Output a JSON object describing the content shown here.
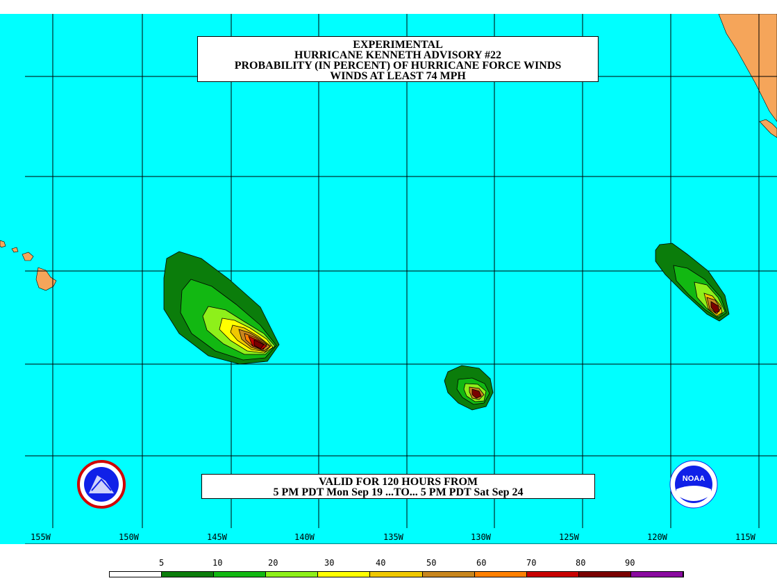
{
  "title": {
    "line1": "EXPERIMENTAL",
    "line2": "HURRICANE KENNETH ADVISORY #22",
    "line3": "PROBABILITY (IN PERCENT) OF HURRICANE FORCE WINDS",
    "line4": "WINDS AT LEAST 74 MPH"
  },
  "valid": {
    "line1": "VALID FOR 120 HOURS FROM",
    "line2": "5 PM PDT Mon Sep 19 ...TO... 5 PM PDT Sat Sep 24"
  },
  "longitudes": [
    "155W",
    "150W",
    "145W",
    "140W",
    "135W",
    "130W",
    "125W",
    "120W",
    "115W"
  ],
  "legend": {
    "labels": [
      "5",
      "10",
      "20",
      "30",
      "40",
      "50",
      "60",
      "70",
      "80",
      "90"
    ],
    "colors": [
      "#ffffff",
      "#0b7d0b",
      "#12b812",
      "#8ef01a",
      "#ffff00",
      "#f0c800",
      "#c8861e",
      "#ff8000",
      "#c80000",
      "#7a0000",
      "#8a0aa0"
    ]
  },
  "colors": {
    "ocean": "#00ffff",
    "land": "#f5a55a",
    "grid": "#000000"
  },
  "logos": {
    "left": "nws-logo",
    "right": "noaa-logo"
  }
}
